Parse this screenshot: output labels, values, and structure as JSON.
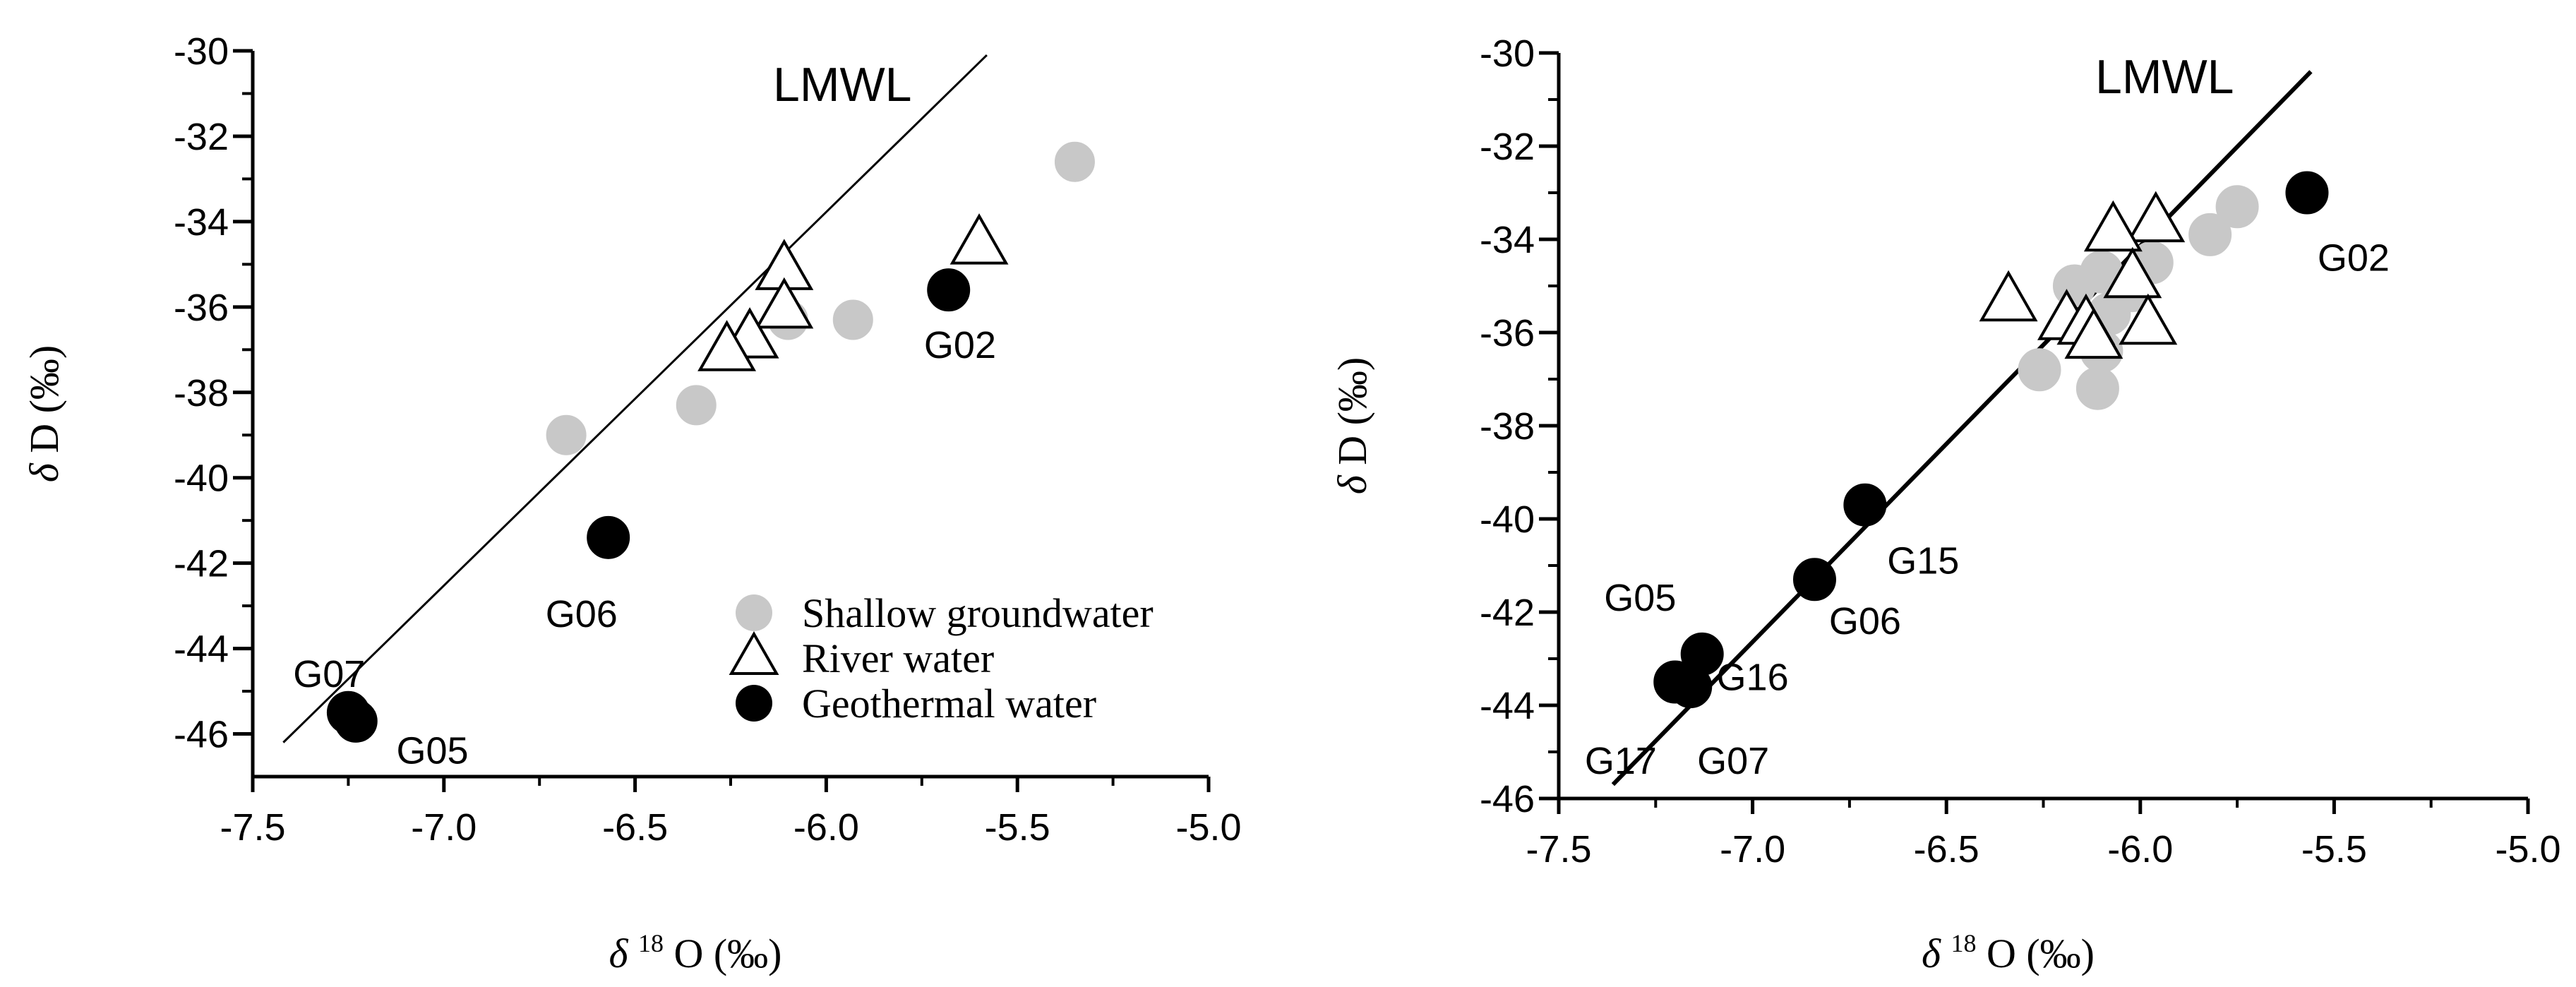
{
  "chart_data": [
    {
      "type": "scatter",
      "xlabel": "δ 18O (‰)",
      "ylabel": "δ D (‰)",
      "xlim": [
        -7.5,
        -5.0
      ],
      "ylim": [
        -47,
        -30
      ],
      "xticks": [
        -7.5,
        -7.0,
        -6.5,
        -6.0,
        -5.5,
        -5.0
      ],
      "yticks": [
        -46,
        -44,
        -42,
        -40,
        -38,
        -36,
        -34,
        -32,
        -30
      ],
      "lmwl": {
        "label": "LMWL",
        "x1": -7.42,
        "y1": -46.2,
        "x2": -5.58,
        "y2": -30.1
      },
      "series": [
        {
          "name": "Shallow groundwater",
          "marker": "gray-circle",
          "points": [
            [
              -5.35,
              -32.6
            ],
            [
              -5.93,
              -36.3
            ],
            [
              -6.1,
              -36.3
            ],
            [
              -6.34,
              -38.3
            ],
            [
              -6.68,
              -39.0
            ]
          ]
        },
        {
          "name": "River water",
          "marker": "open-triangle",
          "points": [
            [
              -5.6,
              -34.5
            ],
            [
              -6.11,
              -35.1
            ],
            [
              -6.11,
              -36.0
            ],
            [
              -6.2,
              -36.7
            ],
            [
              -6.26,
              -37.0
            ]
          ]
        },
        {
          "name": "Geothermal water",
          "marker": "black-circle",
          "points": [
            [
              -5.68,
              -35.6
            ],
            [
              -6.57,
              -41.4
            ],
            [
              -7.25,
              -45.5
            ],
            [
              -7.23,
              -45.7
            ]
          ]
        }
      ],
      "point_labels": [
        {
          "text": "G02",
          "x": -5.65,
          "y": -36.9
        },
        {
          "text": "G06",
          "x": -6.64,
          "y": -43.2
        },
        {
          "text": "G07",
          "x": -7.3,
          "y": -44.6
        },
        {
          "text": "G05",
          "x": -7.03,
          "y": -46.4
        }
      ],
      "legend": {
        "position": "bottom-right",
        "entries": [
          "Shallow groundwater",
          "River water",
          "Geothermal water"
        ]
      }
    },
    {
      "type": "scatter",
      "xlabel": "δ 18O (‰)",
      "ylabel": "δ D (‰)",
      "xlim": [
        -7.5,
        -5.0
      ],
      "ylim": [
        -46,
        -30
      ],
      "xticks": [
        -7.5,
        -7.0,
        -6.5,
        -6.0,
        -5.5,
        -5.0
      ],
      "yticks": [
        -46,
        -44,
        -42,
        -40,
        -38,
        -36,
        -34,
        -32,
        -30
      ],
      "lmwl": {
        "label": "LMWL",
        "x1": -7.36,
        "y1": -45.7,
        "x2": -5.56,
        "y2": -30.4
      },
      "series": [
        {
          "name": "Shallow groundwater",
          "marker": "gray-circle",
          "points": [
            [
              -5.75,
              -33.3
            ],
            [
              -5.82,
              -33.9
            ],
            [
              -5.97,
              -34.5
            ],
            [
              -6.02,
              -35.1
            ],
            [
              -6.1,
              -34.7
            ],
            [
              -6.17,
              -35.0
            ],
            [
              -6.08,
              -35.6
            ],
            [
              -6.1,
              -36.4
            ],
            [
              -6.26,
              -36.8
            ],
            [
              -6.11,
              -37.2
            ]
          ]
        },
        {
          "name": "River water",
          "marker": "open-triangle",
          "points": [
            [
              -5.96,
              -33.6
            ],
            [
              -6.07,
              -33.8
            ],
            [
              -6.34,
              -35.3
            ],
            [
              -6.02,
              -34.8
            ],
            [
              -6.19,
              -35.7
            ],
            [
              -6.14,
              -35.8
            ],
            [
              -5.98,
              -35.8
            ],
            [
              -6.12,
              -36.1
            ]
          ]
        },
        {
          "name": "Geothermal water",
          "marker": "black-circle",
          "points": [
            [
              -5.57,
              -33.0
            ],
            [
              -6.71,
              -39.7
            ],
            [
              -6.84,
              -41.3
            ],
            [
              -7.13,
              -42.9
            ],
            [
              -7.2,
              -43.5
            ],
            [
              -7.16,
              -43.6
            ]
          ]
        }
      ],
      "point_labels": [
        {
          "text": "G02",
          "x": -5.45,
          "y": -34.4
        },
        {
          "text": "G15",
          "x": -6.56,
          "y": -40.9
        },
        {
          "text": "G06",
          "x": -6.71,
          "y": -42.2
        },
        {
          "text": "G05",
          "x": -7.29,
          "y": -41.7
        },
        {
          "text": "G16",
          "x": -7.0,
          "y": -43.4
        },
        {
          "text": "G07",
          "x": -7.05,
          "y": -45.2
        },
        {
          "text": "G17",
          "x": -7.34,
          "y": -45.2
        }
      ]
    }
  ]
}
